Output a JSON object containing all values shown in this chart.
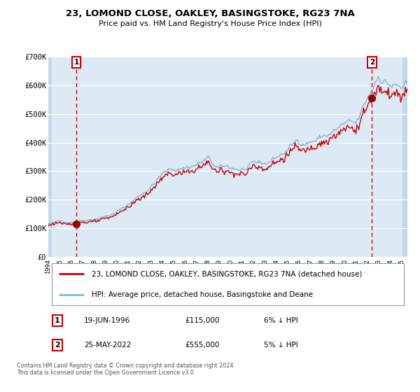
{
  "title_line1": "23, LOMOND CLOSE, OAKLEY, BASINGSTOKE, RG23 7NA",
  "title_line2": "Price paid vs. HM Land Registry's House Price Index (HPI)",
  "sale1_date": "19-JUN-1996",
  "sale1_price": 115000,
  "sale1_label": "6% ↓ HPI",
  "sale2_date": "25-MAY-2022",
  "sale2_price": 555000,
  "sale2_label": "5% ↓ HPI",
  "sale1_year": 1996.47,
  "sale2_year": 2022.39,
  "hpi_color": "#7ab8d9",
  "price_color": "#cc0000",
  "marker_color": "#990000",
  "dashed_line_color": "#cc0000",
  "bg_color": "#ddeaf5",
  "grid_color": "#ffffff",
  "hatch_color": "#c5d8ea",
  "legend_label1": "23, LOMOND CLOSE, OAKLEY, BASINGSTOKE, RG23 7NA (detached house)",
  "legend_label2": "HPI: Average price, detached house, Basingstoke and Deane",
  "footnote": "Contains HM Land Registry data © Crown copyright and database right 2024.\nThis data is licensed under the Open Government Licence v3.0.",
  "xmin": 1994,
  "xmax": 2025.5,
  "ymin": 0,
  "ymax": 700000,
  "yticks": [
    0,
    100000,
    200000,
    300000,
    400000,
    500000,
    600000,
    700000
  ],
  "ytick_labels": [
    "£0",
    "£100K",
    "£200K",
    "£300K",
    "£400K",
    "£500K",
    "£600K",
    "£700K"
  ]
}
